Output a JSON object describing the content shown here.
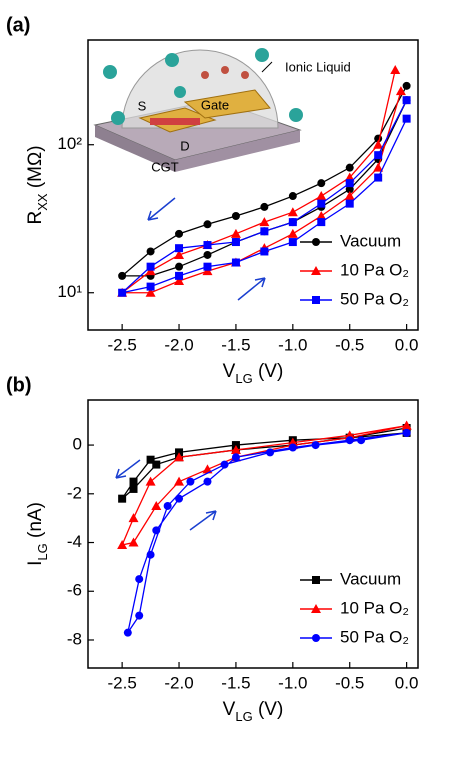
{
  "chart_data": [
    {
      "type": "line",
      "panel": "(a)",
      "log_y": true,
      "xlabel": [
        "V",
        "LG",
        " (V)"
      ],
      "ylabel": [
        "R",
        "XX",
        " (MΩ)"
      ],
      "xlim": [
        -2.8,
        0.1
      ],
      "ylim": [
        5.6,
        510
      ],
      "xticks": [
        -2.5,
        {
          "value": -2,
          "label": "-2.0"
        },
        -1.5,
        {
          "value": -1,
          "label": "-1.0"
        },
        -0.5,
        {
          "value": 0,
          "label": "0.0"
        }
      ],
      "yticks": [
        {
          "value": 10,
          "label": "10¹"
        },
        {
          "value": 100,
          "label": "10²"
        }
      ],
      "legend": "lower right",
      "annotations": [
        "Ionic Liquid",
        "S",
        "Gate",
        "D",
        "CGT"
      ],
      "series": [
        {
          "name": "Vacuum",
          "color": "#000000",
          "marker": "circle",
          "x": [
            0,
            -0.25,
            -0.5,
            -0.75,
            -1,
            -1.25,
            -1.5,
            -1.75,
            -2,
            -2.25,
            -2.5,
            -2.25,
            -2,
            -1.75,
            -1.5,
            -1.25,
            -1,
            -0.75,
            -0.5,
            -0.25,
            0
          ],
          "values": [
            250,
            110,
            70,
            55,
            45,
            38,
            33,
            29,
            25,
            19,
            13,
            13,
            15,
            18,
            22,
            26,
            30,
            38,
            50,
            80,
            200
          ]
        },
        {
          "name": "10 Pa O₂",
          "color": "#ff0000",
          "marker": "triangle",
          "x": [
            -0.1,
            -0.25,
            -0.5,
            -0.75,
            -1,
            -1.25,
            -1.5,
            -1.75,
            -2,
            -2.25,
            -2.5,
            -2.25,
            -2,
            -1.75,
            -1.5,
            -1.25,
            -1,
            -0.75,
            -0.5,
            -0.25,
            -0.05
          ],
          "values": [
            320,
            100,
            60,
            45,
            35,
            30,
            25,
            21,
            18,
            14,
            10,
            10,
            12,
            14,
            16,
            20,
            25,
            33,
            45,
            70,
            230
          ]
        },
        {
          "name": "50 Pa O₂",
          "color": "#0000ff",
          "marker": "square",
          "x": [
            0,
            -0.25,
            -0.5,
            -0.75,
            -1,
            -1.25,
            -1.5,
            -1.75,
            -2,
            -2.25,
            -2.5,
            -2.25,
            -2,
            -1.75,
            -1.5,
            -1.25,
            -1,
            -0.75,
            -0.5,
            -0.25,
            0
          ],
          "values": [
            200,
            85,
            55,
            40,
            30,
            26,
            22,
            21,
            20,
            15,
            10,
            11,
            13,
            15,
            16,
            19,
            22,
            30,
            40,
            60,
            150
          ]
        }
      ]
    },
    {
      "type": "line",
      "panel": "(b)",
      "log_y": false,
      "xlabel": [
        "V",
        "LG",
        " (V)"
      ],
      "ylabel": [
        "I",
        "LG",
        " (nA)"
      ],
      "xlim": [
        -2.8,
        0.1
      ],
      "ylim": [
        -9.15,
        1.85
      ],
      "xticks": [
        -2.5,
        {
          "value": -2,
          "label": "-2.0"
        },
        -1.5,
        {
          "value": -1,
          "label": "-1.0"
        },
        -0.5,
        {
          "value": 0,
          "label": "0.0"
        }
      ],
      "yticks": [
        0,
        -2,
        -4,
        -6,
        -8
      ],
      "legend": "lower right",
      "series": [
        {
          "name": "Vacuum",
          "color": "#000000",
          "marker": "square",
          "x": [
            0,
            -0.5,
            -1,
            -1.5,
            -2,
            -2.25,
            -2.4,
            -2.5,
            -2.4,
            -2.2,
            -2,
            -1.5,
            -1,
            -0.5,
            0
          ],
          "values": [
            0.5,
            0.3,
            0.2,
            0,
            -0.3,
            -0.6,
            -1.5,
            -2.2,
            -1.8,
            -0.8,
            -0.5,
            -0.2,
            0,
            0.3,
            0.7
          ]
        },
        {
          "name": "10 Pa O₂",
          "color": "#ff0000",
          "marker": "triangle",
          "x": [
            0,
            -0.5,
            -1,
            -1.5,
            -2,
            -2.25,
            -2.4,
            -2.5,
            -2.4,
            -2.2,
            -2,
            -1.75,
            -1.5,
            -1,
            -0.5,
            0
          ],
          "values": [
            0.8,
            0.4,
            0.1,
            -0.2,
            -0.5,
            -1.5,
            -3,
            -4.1,
            -4,
            -2.5,
            -1.5,
            -1,
            -0.5,
            0,
            0.3,
            0.8
          ]
        },
        {
          "name": "50 Pa O₂",
          "color": "#0000ff",
          "marker": "circle",
          "x": [
            0,
            -0.5,
            -1,
            -1.5,
            -1.75,
            -2,
            -2.2,
            -2.35,
            -2.45,
            -2.35,
            -2.25,
            -2.1,
            -1.9,
            -1.6,
            -1.2,
            -0.8,
            -0.4,
            0
          ],
          "values": [
            0.5,
            0.2,
            -0.1,
            -0.5,
            -1.5,
            -2.2,
            -3.5,
            -5.5,
            -7.7,
            -7,
            -4.5,
            -2.5,
            -1.5,
            -0.8,
            -0.3,
            0,
            0.2,
            0.5
          ]
        }
      ]
    }
  ]
}
